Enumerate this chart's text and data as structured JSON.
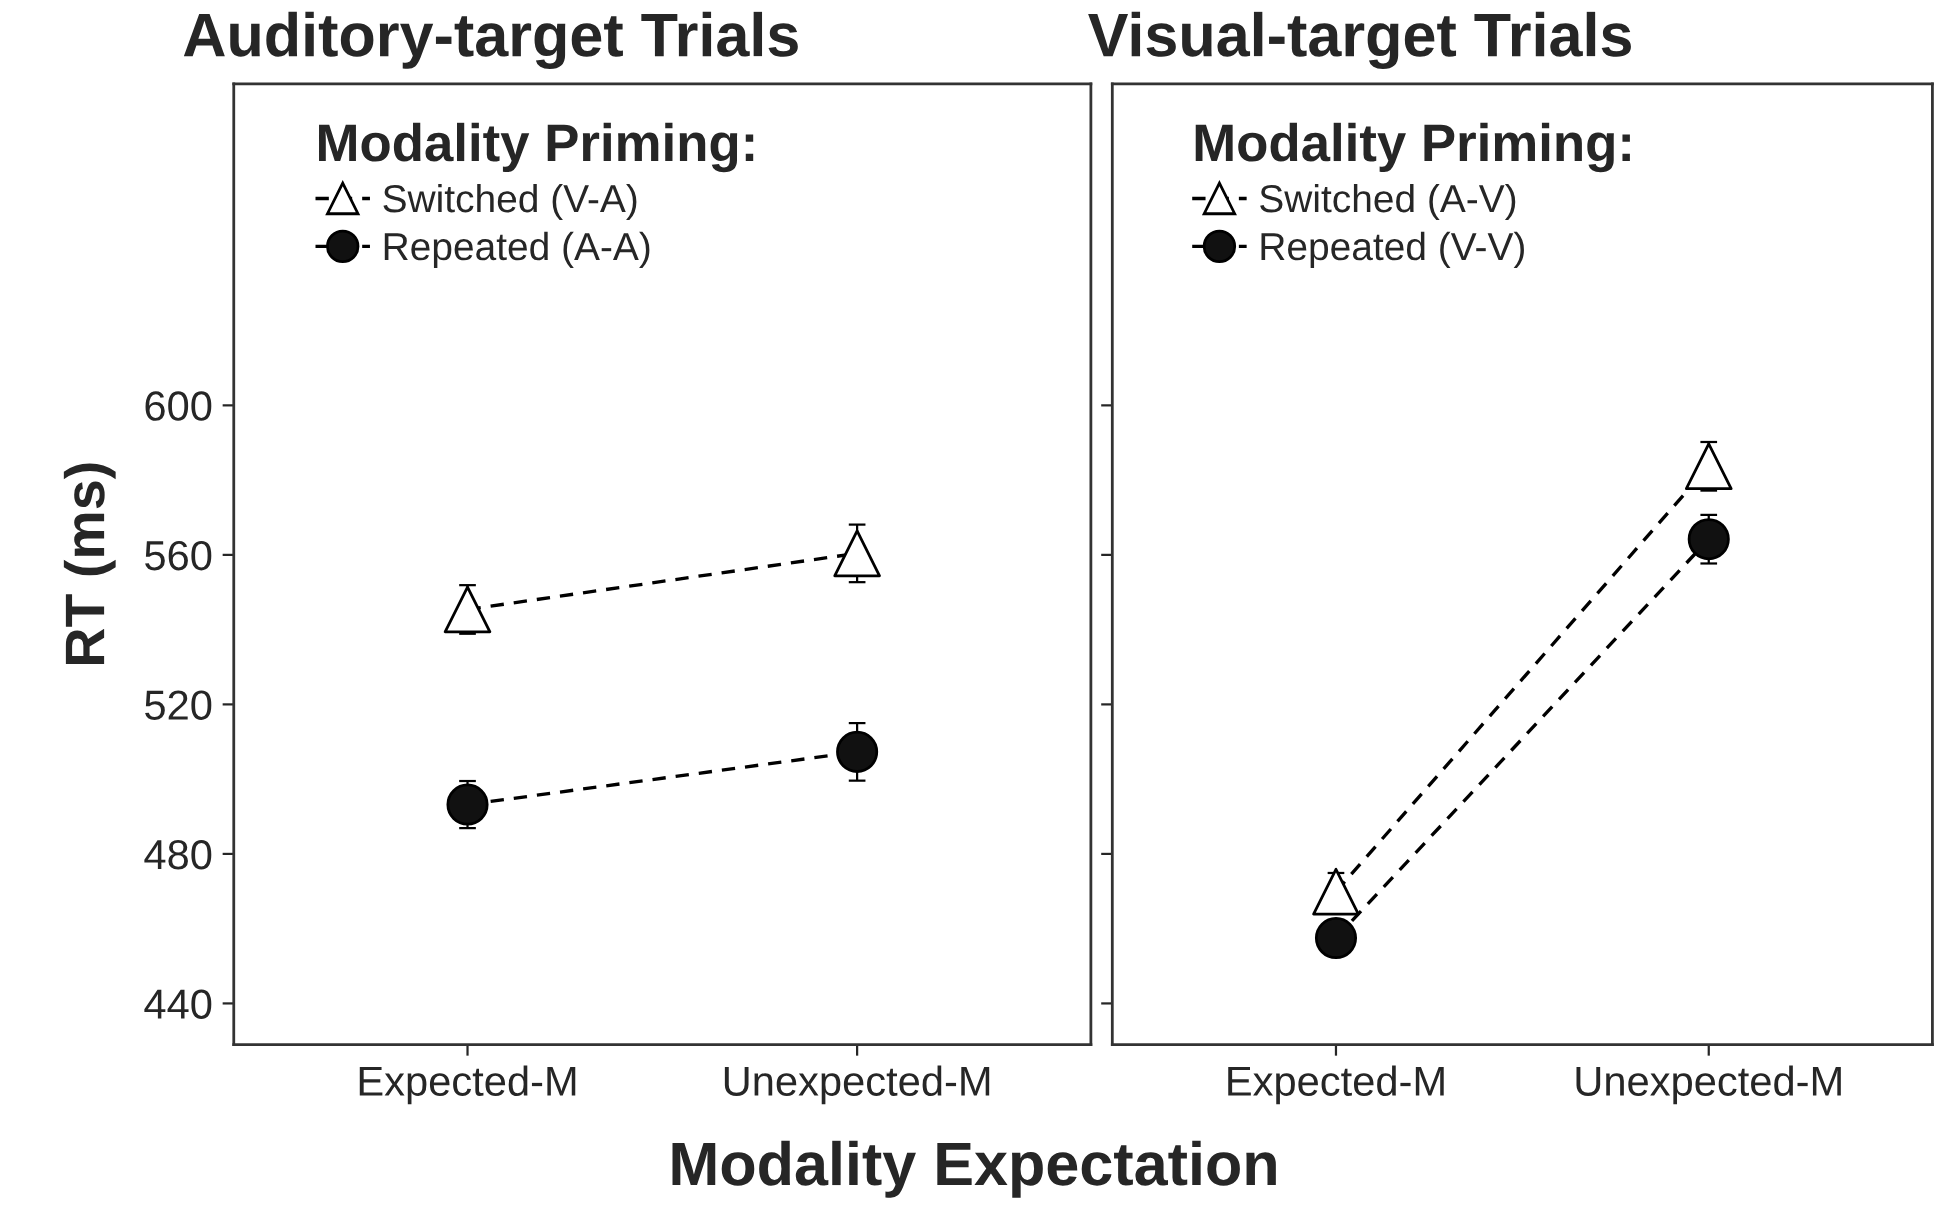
{
  "chart_data": [
    {
      "type": "line",
      "title": "Auditory-target Trials",
      "xlabel": "Modality Expectation",
      "ylabel": "RT (ms)",
      "categories": [
        "Expected-M",
        "Unexpected-M"
      ],
      "legend_title": "Modality Priming:",
      "legend": "top left",
      "line_style": "dashed",
      "grid": false,
      "ylim": [
        429,
        686
      ],
      "yticks": [
        440,
        480,
        520,
        560,
        600
      ],
      "series": [
        {
          "name": "Switched (V-A)",
          "color": "#ffffff",
          "marker": "triangle",
          "values": [
            545.4,
            560.4
          ],
          "errors": [
            6.5,
            7.7
          ]
        },
        {
          "name": "Repeated (A-A)",
          "color": "#111111",
          "marker": "circle",
          "values": [
            493.2,
            507.3
          ],
          "errors": [
            6.3,
            7.7
          ]
        }
      ]
    },
    {
      "type": "line",
      "title": "Visual-target Trials",
      "categories": [
        "Expected-M",
        "Unexpected-M"
      ],
      "legend_title": "Modality Priming:",
      "legend": "top left",
      "line_style": "dashed",
      "grid": false,
      "ylim": [
        429,
        686
      ],
      "yticks": [
        440,
        480,
        520,
        560,
        600
      ],
      "tick_labels": "x",
      "series": [
        {
          "name": "Switched (A-V)",
          "color": "#ffffff",
          "marker": "triangle",
          "values": [
            469.9,
            583.7
          ],
          "errors": [
            5,
            6.5
          ]
        },
        {
          "name": "Repeated (V-V)",
          "color": "#111111",
          "marker": "circle",
          "values": [
            457.5,
            564.2
          ],
          "errors": [
            3,
            6.5
          ]
        }
      ]
    }
  ]
}
